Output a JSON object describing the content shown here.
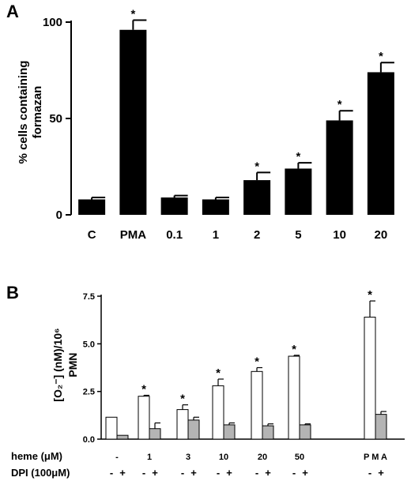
{
  "chart_data": [
    {
      "panel": "A",
      "type": "bar",
      "ylabel_lines": [
        "% cells containing",
        "formazan"
      ],
      "ylim": [
        0,
        100
      ],
      "yticks": [
        0,
        50,
        100
      ],
      "categories": [
        "C",
        "PMA",
        "0.1",
        "1",
        "2",
        "5",
        "10",
        "20"
      ],
      "values": [
        8,
        96,
        9,
        8,
        18,
        24,
        49,
        74
      ],
      "errors": [
        1,
        5,
        1,
        1,
        4,
        3,
        5,
        5
      ],
      "significant": [
        false,
        true,
        false,
        false,
        true,
        true,
        true,
        true
      ],
      "star_text": "*",
      "bar_color": "#000000"
    },
    {
      "panel": "B",
      "type": "bar",
      "ylabel_lines": [
        "[O₂⁻] (nM)/10⁶",
        "PMN"
      ],
      "ylim": [
        0,
        7.5
      ],
      "yticks": [
        "0.0",
        "2.5",
        "5.0",
        "7.5"
      ],
      "row_labels": [
        "heme (μM)",
        "DPI (100μM)"
      ],
      "groups": [
        {
          "label": "-",
          "minus": 1.15,
          "minus_err": 0,
          "plus": 0.2,
          "plus_err": 0,
          "star": false
        },
        {
          "label": "1",
          "minus": 2.25,
          "minus_err": 0.05,
          "plus": 0.55,
          "plus_err": 0.3,
          "star": true
        },
        {
          "label": "3",
          "minus": 1.55,
          "minus_err": 0.25,
          "plus": 1.0,
          "plus_err": 0.15,
          "star": true
        },
        {
          "label": "10",
          "minus": 2.8,
          "minus_err": 0.35,
          "plus": 0.75,
          "plus_err": 0.1,
          "star": true
        },
        {
          "label": "20",
          "minus": 3.55,
          "minus_err": 0.2,
          "plus": 0.7,
          "plus_err": 0.1,
          "star": true
        },
        {
          "label": "50",
          "minus": 4.35,
          "minus_err": 0.05,
          "plus": 0.75,
          "plus_err": 0.05,
          "star": true
        },
        {
          "label": "P M A",
          "minus": 6.4,
          "minus_err": 0.85,
          "plus": 1.3,
          "plus_err": 0.15,
          "star": true
        }
      ],
      "sign_minus": "-",
      "sign_plus": "+",
      "star_text": "*",
      "minus_color": "#ffffff",
      "plus_color": "#b4b4b4"
    }
  ]
}
